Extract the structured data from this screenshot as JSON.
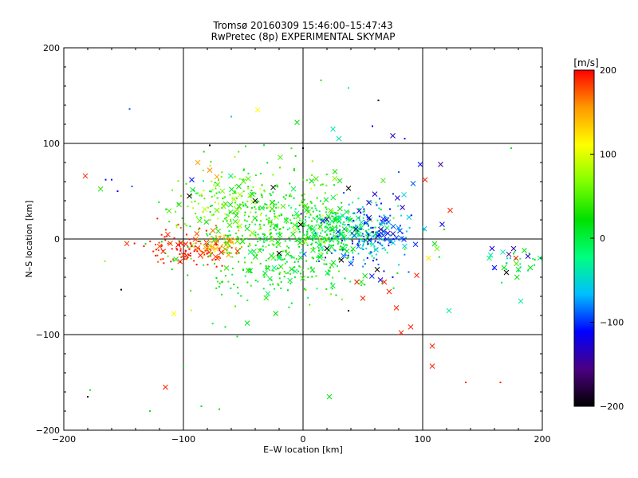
{
  "chart_data": {
    "type": "scatter",
    "title": "Tromsø 20160309 15:46:00–15:47:43",
    "subtitle": "RwPretec (8p) EXPERIMENTAL SKYMAP",
    "xlabel": "E–W location [km]",
    "ylabel": "N–S location [km]",
    "xlim": [
      -200,
      200
    ],
    "ylim": [
      -200,
      200
    ],
    "x_ticks": [
      -200,
      -100,
      0,
      100,
      200
    ],
    "y_ticks": [
      -200,
      -100,
      0,
      100,
      200
    ],
    "grid_lines": [
      -100,
      0,
      100
    ],
    "colorbar": {
      "label": "[m/s]",
      "min": -200,
      "max": 200,
      "ticks": [
        200,
        100,
        0,
        -100,
        -200
      ],
      "colors": [
        "#000000",
        "#4b0082",
        "#0000ff",
        "#00bfff",
        "#00ff7f",
        "#00e000",
        "#7fff00",
        "#ffff00",
        "#ff9900",
        "#ff0000"
      ]
    },
    "points": [
      {
        "x": -182,
        "y": 66,
        "v": 190,
        "m": "x"
      },
      {
        "x": -180,
        "y": -165,
        "v": -200,
        "m": "."
      },
      {
        "x": -178,
        "y": -158,
        "v": 30,
        "m": "."
      },
      {
        "x": -165,
        "y": 62,
        "v": -110,
        "m": "."
      },
      {
        "x": -160,
        "y": 62,
        "v": -110,
        "m": "."
      },
      {
        "x": -155,
        "y": 50,
        "v": -110,
        "m": "."
      },
      {
        "x": -152,
        "y": -53,
        "v": -200,
        "m": "."
      },
      {
        "x": -145,
        "y": 136,
        "v": -90,
        "m": "."
      },
      {
        "x": -143,
        "y": 55,
        "v": -90,
        "m": "."
      },
      {
        "x": -128,
        "y": -180,
        "v": 10,
        "m": "."
      },
      {
        "x": -115,
        "y": -155,
        "v": 190,
        "m": "x"
      },
      {
        "x": -108,
        "y": -78,
        "v": 110,
        "m": "x"
      },
      {
        "x": -100,
        "y": -133,
        "v": 20,
        "m": "."
      },
      {
        "x": -95,
        "y": 45,
        "v": -200,
        "m": "x"
      },
      {
        "x": -93,
        "y": 62,
        "v": -110,
        "m": "x"
      },
      {
        "x": -88,
        "y": 80,
        "v": 150,
        "m": "x"
      },
      {
        "x": -85,
        "y": -175,
        "v": 20,
        "m": "."
      },
      {
        "x": -78,
        "y": 98,
        "v": -200,
        "m": "."
      },
      {
        "x": -78,
        "y": 72,
        "v": 160,
        "m": "x"
      },
      {
        "x": -72,
        "y": 65,
        "v": 150,
        "m": "x"
      },
      {
        "x": -70,
        "y": -178,
        "v": 20,
        "m": "."
      },
      {
        "x": -65,
        "y": -92,
        "v": 10,
        "m": "."
      },
      {
        "x": -60,
        "y": 128,
        "v": -60,
        "m": "."
      },
      {
        "x": -55,
        "y": -102,
        "v": 10,
        "m": "."
      },
      {
        "x": -48,
        "y": 97,
        "v": 30,
        "m": "."
      },
      {
        "x": -40,
        "y": 40,
        "v": -200,
        "m": "x"
      },
      {
        "x": -38,
        "y": 135,
        "v": 110,
        "m": "x"
      },
      {
        "x": -25,
        "y": 54,
        "v": -200,
        "m": "x"
      },
      {
        "x": -20,
        "y": -15,
        "v": -200,
        "m": "x"
      },
      {
        "x": -5,
        "y": 122,
        "v": 20,
        "m": "x"
      },
      {
        "x": -2,
        "y": 15,
        "v": -200,
        "m": "x"
      },
      {
        "x": 0,
        "y": 95,
        "v": -200,
        "m": "."
      },
      {
        "x": 15,
        "y": 166,
        "v": 30,
        "m": "."
      },
      {
        "x": 20,
        "y": -10,
        "v": -200,
        "m": "x"
      },
      {
        "x": 22,
        "y": -165,
        "v": 20,
        "m": "x"
      },
      {
        "x": 25,
        "y": 115,
        "v": -40,
        "m": "x"
      },
      {
        "x": 30,
        "y": 105,
        "v": -40,
        "m": "x"
      },
      {
        "x": 32,
        "y": -22,
        "v": -200,
        "m": "x"
      },
      {
        "x": 38,
        "y": 53,
        "v": -200,
        "m": "x"
      },
      {
        "x": 38,
        "y": -75,
        "v": -200,
        "m": "."
      },
      {
        "x": 38,
        "y": 158,
        "v": -40,
        "m": "."
      },
      {
        "x": 45,
        "y": -45,
        "v": 190,
        "m": "x"
      },
      {
        "x": 50,
        "y": -62,
        "v": 190,
        "m": "x"
      },
      {
        "x": 55,
        "y": 38,
        "v": -130,
        "m": "x"
      },
      {
        "x": 58,
        "y": 118,
        "v": -110,
        "m": "."
      },
      {
        "x": 60,
        "y": 47,
        "v": -130,
        "m": "x"
      },
      {
        "x": 62,
        "y": -32,
        "v": -200,
        "m": "x"
      },
      {
        "x": 63,
        "y": 145,
        "v": -200,
        "m": "."
      },
      {
        "x": 65,
        "y": 10,
        "v": -150,
        "m": "x"
      },
      {
        "x": 68,
        "y": -45,
        "v": 190,
        "m": "x"
      },
      {
        "x": 70,
        "y": 20,
        "v": -120,
        "m": "x"
      },
      {
        "x": 72,
        "y": -55,
        "v": 190,
        "m": "x"
      },
      {
        "x": 75,
        "y": 108,
        "v": -130,
        "m": "x"
      },
      {
        "x": 78,
        "y": -72,
        "v": 190,
        "m": "x"
      },
      {
        "x": 80,
        "y": 70,
        "v": -90,
        "m": "."
      },
      {
        "x": 82,
        "y": -98,
        "v": 190,
        "m": "x"
      },
      {
        "x": 85,
        "y": 105,
        "v": -110,
        "m": "."
      },
      {
        "x": 90,
        "y": -92,
        "v": 190,
        "m": "x"
      },
      {
        "x": 92,
        "y": 58,
        "v": -90,
        "m": "x"
      },
      {
        "x": 95,
        "y": -38,
        "v": 190,
        "m": "x"
      },
      {
        "x": 98,
        "y": 78,
        "v": -110,
        "m": "x"
      },
      {
        "x": 102,
        "y": 62,
        "v": 190,
        "m": "x"
      },
      {
        "x": 105,
        "y": -20,
        "v": 120,
        "m": "x"
      },
      {
        "x": 108,
        "y": -112,
        "v": 190,
        "m": "x"
      },
      {
        "x": 108,
        "y": -133,
        "v": 190,
        "m": "x"
      },
      {
        "x": 110,
        "y": -5,
        "v": 20,
        "m": "x"
      },
      {
        "x": 112,
        "y": -10,
        "v": 60,
        "m": "x"
      },
      {
        "x": 115,
        "y": 78,
        "v": -150,
        "m": "x"
      },
      {
        "x": 118,
        "y": 10,
        "v": 20,
        "m": "."
      },
      {
        "x": 122,
        "y": -75,
        "v": -30,
        "m": "x"
      },
      {
        "x": 123,
        "y": 30,
        "v": 190,
        "m": "x"
      },
      {
        "x": 136,
        "y": -150,
        "v": 190,
        "m": "."
      },
      {
        "x": 158,
        "y": -10,
        "v": -120,
        "m": "x"
      },
      {
        "x": 160,
        "y": -30,
        "v": -110,
        "m": "x"
      },
      {
        "x": 165,
        "y": -150,
        "v": 190,
        "m": "."
      },
      {
        "x": 168,
        "y": -30,
        "v": 20,
        "m": "x"
      },
      {
        "x": 170,
        "y": -35,
        "v": -200,
        "m": "x"
      },
      {
        "x": 172,
        "y": -16,
        "v": -150,
        "m": "x"
      },
      {
        "x": 174,
        "y": 95,
        "v": 20,
        "m": "."
      },
      {
        "x": 176,
        "y": -10,
        "v": -140,
        "m": "x"
      },
      {
        "x": 178,
        "y": -20,
        "v": 190,
        "m": "x"
      },
      {
        "x": 180,
        "y": -32,
        "v": 10,
        "m": "x"
      },
      {
        "x": 182,
        "y": -65,
        "v": -30,
        "m": "x"
      },
      {
        "x": 185,
        "y": -12,
        "v": 20,
        "m": "x"
      },
      {
        "x": 188,
        "y": -18,
        "v": -130,
        "m": "x"
      },
      {
        "x": 190,
        "y": -30,
        "v": 20,
        "m": "x"
      }
    ],
    "clusters": [
      {
        "cx": -30,
        "cy": 20,
        "sx": 40,
        "sy": 28,
        "n": 420,
        "v": 30,
        "sv": 25
      },
      {
        "cx": 25,
        "cy": 8,
        "sx": 22,
        "sy": 14,
        "n": 260,
        "v": 0,
        "sv": 20
      },
      {
        "cx": 55,
        "cy": 5,
        "sx": 18,
        "sy": 18,
        "n": 200,
        "v": -90,
        "sv": 30
      },
      {
        "cx": -95,
        "cy": -10,
        "sx": 20,
        "sy": 10,
        "n": 120,
        "v": 190,
        "sv": 10
      },
      {
        "cx": -70,
        "cy": -5,
        "sx": 12,
        "sy": 8,
        "n": 60,
        "v": 150,
        "sv": 15
      },
      {
        "cx": -20,
        "cy": -35,
        "sx": 35,
        "sy": 20,
        "n": 160,
        "v": 20,
        "sv": 20
      },
      {
        "cx": -70,
        "cy": 40,
        "sx": 20,
        "sy": 15,
        "n": 80,
        "v": 60,
        "sv": 25
      },
      {
        "cx": 175,
        "cy": -25,
        "sx": 10,
        "sy": 8,
        "n": 25,
        "v": -10,
        "sv": 30
      }
    ]
  }
}
